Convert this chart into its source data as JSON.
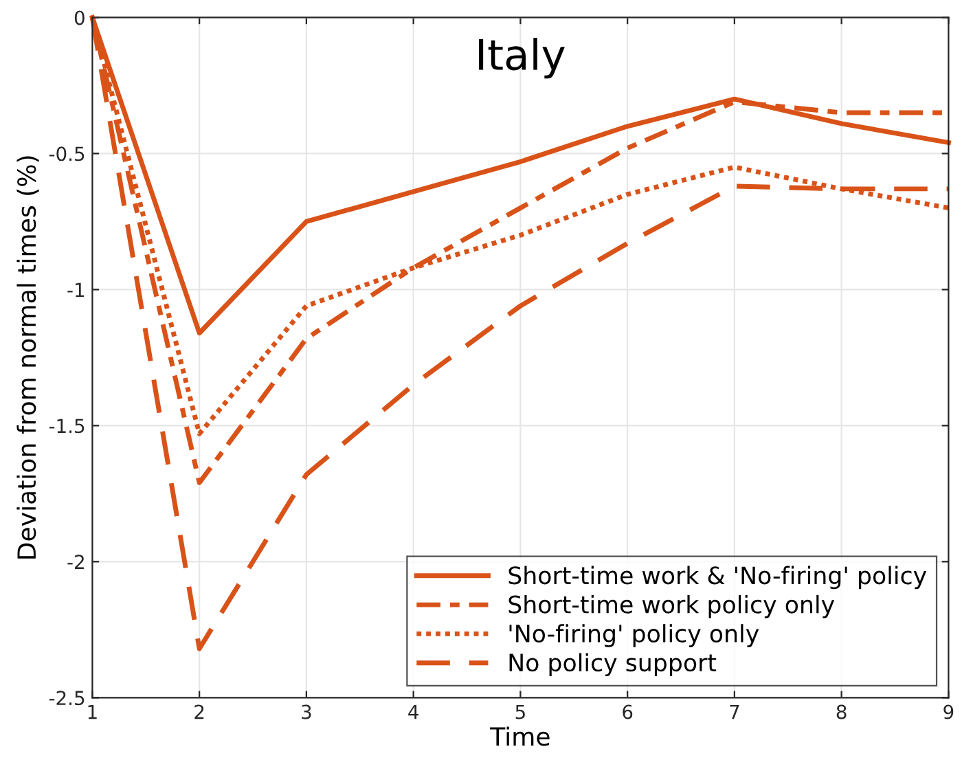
{
  "chart_data": {
    "type": "line",
    "title": "Italy",
    "xlabel": "Time",
    "ylabel": "Deviation from normal times (%)",
    "x": [
      1,
      2,
      3,
      4,
      5,
      6,
      7,
      8,
      9
    ],
    "series": [
      {
        "name": "Short-time work & 'No-firing' policy",
        "color": "#d95319",
        "line_style": "solid",
        "values": [
          0,
          -1.16,
          -0.75,
          -0.64,
          -0.53,
          -0.4,
          -0.3,
          -0.39,
          -0.46
        ]
      },
      {
        "name": "Short-time work policy only",
        "color": "#d95319",
        "line_style": "dashdot",
        "values": [
          0,
          -1.71,
          -1.18,
          -0.92,
          -0.7,
          -0.48,
          -0.31,
          -0.35,
          -0.35
        ]
      },
      {
        "name": "'No-firing' policy only",
        "color": "#d95319",
        "line_style": "dotted",
        "values": [
          0,
          -1.53,
          -1.06,
          -0.92,
          -0.8,
          -0.65,
          -0.55,
          -0.63,
          -0.7
        ]
      },
      {
        "name": "No policy support",
        "color": "#d95319",
        "line_style": "dashed",
        "values": [
          0,
          -2.32,
          -1.68,
          -1.35,
          -1.06,
          -0.83,
          -0.62,
          -0.63,
          -0.63
        ]
      }
    ],
    "xlim": [
      1,
      9
    ],
    "xticks": [
      1,
      2,
      3,
      4,
      5,
      6,
      7,
      8,
      9
    ],
    "ylim": [
      -2.5,
      0
    ],
    "yticks": [
      -2.5,
      -2,
      -1.5,
      -1,
      -0.5,
      0
    ],
    "grid": true,
    "legend": "bottom right",
    "marker": "none"
  }
}
